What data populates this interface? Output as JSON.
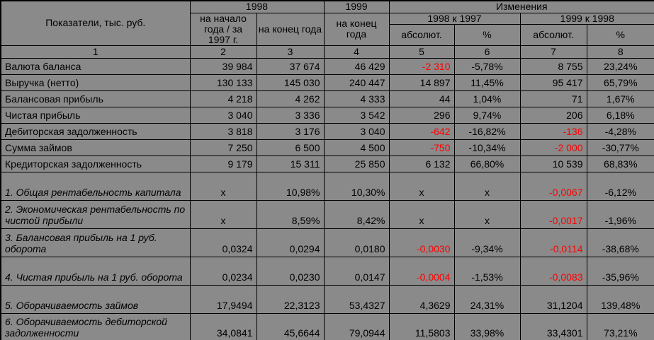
{
  "colors": {
    "negative": "#ff0000",
    "text": "#000000",
    "background": "#8a8a8a",
    "gridline": "#000000"
  },
  "header": {
    "indicators": "Показатели, тыс. руб.",
    "y1998": "1998",
    "y1999": "1999",
    "changes": "Изменения",
    "start_1997": "на начало года / за 1997 г.",
    "end_1998": "на конец года",
    "end_1999": "на конец года",
    "chg_1998_1997": "1998 к 1997",
    "chg_1999_1998": "1999 к 1998",
    "absolute_1": "абсолют.",
    "percent_1": "%",
    "absolute_2": "абсолют.",
    "percent_2": "%",
    "col_numbers": [
      "1",
      "2",
      "3",
      "4",
      "5",
      "6",
      "7",
      "8"
    ]
  },
  "rows": [
    {
      "label": "Валюта баланса",
      "italic": false,
      "tall": false,
      "cells": [
        {
          "v": "39 984"
        },
        {
          "v": "37 674"
        },
        {
          "v": "46 429"
        },
        {
          "v": "-2 310",
          "red": true
        },
        {
          "v": "-5,78%"
        },
        {
          "v": "8 755"
        },
        {
          "v": "23,24%"
        }
      ]
    },
    {
      "label": "Выручка (нетто)",
      "italic": false,
      "tall": false,
      "cells": [
        {
          "v": "130 133"
        },
        {
          "v": "145 030"
        },
        {
          "v": "240 447"
        },
        {
          "v": "14 897"
        },
        {
          "v": "11,45%"
        },
        {
          "v": "95 417"
        },
        {
          "v": "65,79%"
        }
      ]
    },
    {
      "label": "Балансовая прибыль",
      "italic": false,
      "tall": false,
      "cells": [
        {
          "v": "4 218"
        },
        {
          "v": "4 262"
        },
        {
          "v": "4 333"
        },
        {
          "v": "44"
        },
        {
          "v": "1,04%"
        },
        {
          "v": "71"
        },
        {
          "v": "1,67%"
        }
      ]
    },
    {
      "label": "Чистая прибыль",
      "italic": false,
      "tall": false,
      "cells": [
        {
          "v": "3 040"
        },
        {
          "v": "3 336"
        },
        {
          "v": "3 542"
        },
        {
          "v": "296"
        },
        {
          "v": "9,74%"
        },
        {
          "v": "206"
        },
        {
          "v": "6,18%"
        }
      ]
    },
    {
      "label": "Дебиторская задолженность",
      "italic": false,
      "tall": false,
      "cells": [
        {
          "v": "3 818"
        },
        {
          "v": "3 176"
        },
        {
          "v": "3 040"
        },
        {
          "v": "-642",
          "red": true
        },
        {
          "v": "-16,82%"
        },
        {
          "v": "-136",
          "red": true
        },
        {
          "v": "-4,28%"
        }
      ]
    },
    {
      "label": "Сумма займов",
      "italic": false,
      "tall": false,
      "cells": [
        {
          "v": "7 250"
        },
        {
          "v": "6 500"
        },
        {
          "v": "4 500"
        },
        {
          "v": "-750",
          "red": true
        },
        {
          "v": "-10,34%"
        },
        {
          "v": "-2 000",
          "red": true
        },
        {
          "v": "-30,77%"
        }
      ]
    },
    {
      "label": "Кредиторская задолженность",
      "italic": false,
      "tall": false,
      "cells": [
        {
          "v": "9 179"
        },
        {
          "v": "15 311"
        },
        {
          "v": "25 850"
        },
        {
          "v": "6 132"
        },
        {
          "v": "66,80%"
        },
        {
          "v": "10 539"
        },
        {
          "v": "68,83%"
        }
      ]
    },
    {
      "label": "1. Общая рентабельность капитала",
      "italic": true,
      "tall": true,
      "cells": [
        {
          "v": "x"
        },
        {
          "v": "10,98%"
        },
        {
          "v": "10,30%"
        },
        {
          "v": "x"
        },
        {
          "v": "x"
        },
        {
          "v": "-0,0067",
          "red": true
        },
        {
          "v": "-6,12%"
        }
      ]
    },
    {
      "label": "2. Экономическая рентабельность по чистой прибыли",
      "italic": true,
      "tall": true,
      "cells": [
        {
          "v": "x"
        },
        {
          "v": "8,59%"
        },
        {
          "v": "8,42%"
        },
        {
          "v": "x"
        },
        {
          "v": "x"
        },
        {
          "v": "-0,0017",
          "red": true
        },
        {
          "v": "-1,96%"
        }
      ]
    },
    {
      "label": "3. Балансовая прибыль на 1 руб. оборота",
      "italic": true,
      "tall": true,
      "cells": [
        {
          "v": "0,0324"
        },
        {
          "v": "0,0294"
        },
        {
          "v": "0,0180"
        },
        {
          "v": "-0,0030",
          "red": true
        },
        {
          "v": "-9,34%"
        },
        {
          "v": "-0,0114",
          "red": true
        },
        {
          "v": "-38,68%"
        }
      ]
    },
    {
      "label": "4. Чистая прибыль на 1 руб. оборота",
      "italic": true,
      "tall": true,
      "cells": [
        {
          "v": "0,0234"
        },
        {
          "v": "0,0230"
        },
        {
          "v": "0,0147"
        },
        {
          "v": "-0,0004",
          "red": true
        },
        {
          "v": "-1,53%"
        },
        {
          "v": "-0,0083",
          "red": true
        },
        {
          "v": "-35,96%"
        }
      ]
    },
    {
      "label": "5. Оборачиваемость займов",
      "italic": true,
      "tall": true,
      "cells": [
        {
          "v": "17,9494"
        },
        {
          "v": "22,3123"
        },
        {
          "v": "53,4327"
        },
        {
          "v": "4,3629"
        },
        {
          "v": "24,31%"
        },
        {
          "v": "31,1204"
        },
        {
          "v": "139,48%"
        }
      ]
    },
    {
      "label": "6. Оборачиваемость дебиторской задолженности",
      "italic": true,
      "tall": true,
      "cells": [
        {
          "v": "34,0841"
        },
        {
          "v": "45,6644"
        },
        {
          "v": "79,0944"
        },
        {
          "v": "11,5803"
        },
        {
          "v": "33,98%"
        },
        {
          "v": "33,4301"
        },
        {
          "v": "73,21%"
        }
      ]
    }
  ]
}
